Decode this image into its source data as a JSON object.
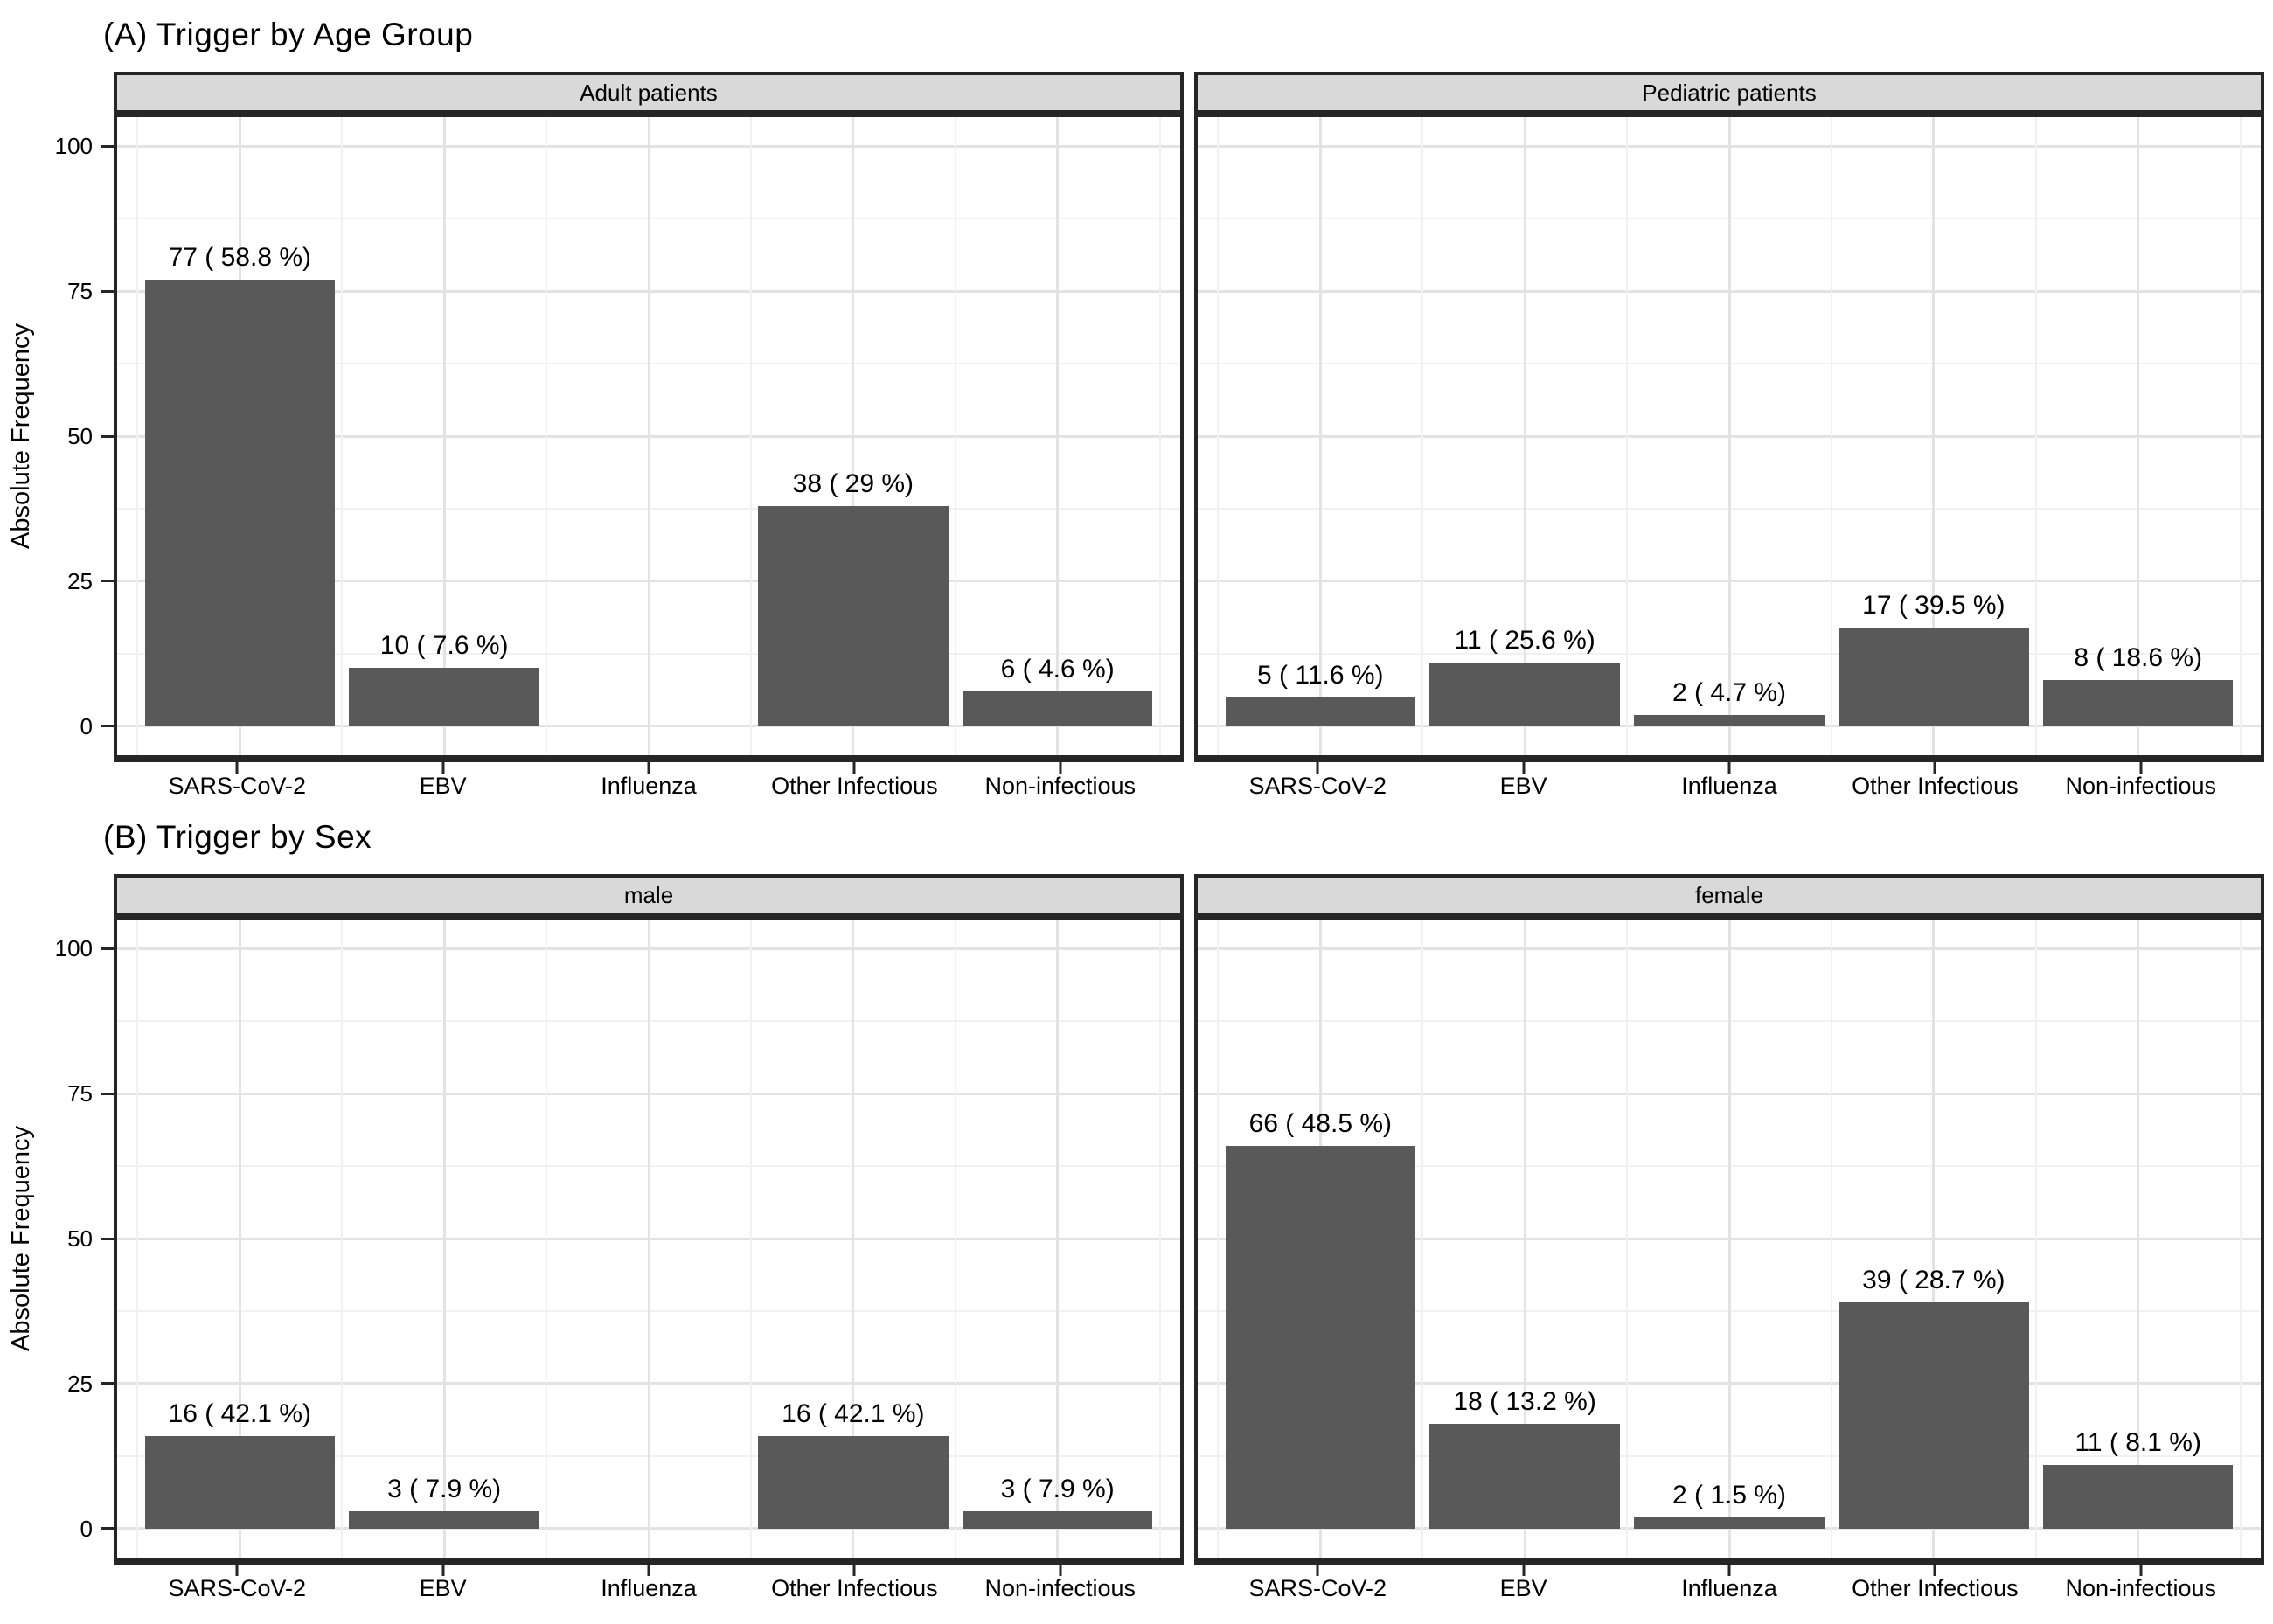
{
  "colors": {
    "bar_fill": "#595959",
    "strip_background": "#d9d9d9",
    "panel_border": "#262626",
    "grid_major": "#e3e3e3",
    "grid_minor": "#f1f1f1",
    "text": "#000000",
    "page_background": "#ffffff"
  },
  "y_axis": {
    "label": "Absolute Frequency",
    "tick_values": [
      0,
      25,
      50,
      75,
      100
    ],
    "minor_values": [
      12.5,
      37.5,
      62.5,
      87.5
    ],
    "domain_min": -5,
    "domain_max": 105
  },
  "categories": [
    "SARS-CoV-2",
    "EBV",
    "Influenza",
    "Other Infectious",
    "Non-infectious"
  ],
  "chart_data": [
    {
      "type": "bar",
      "title": "(A) Trigger by Age Group",
      "xlabel": "",
      "ylabel": "Absolute Frequency",
      "ylim": [
        0,
        105
      ],
      "grid": "on",
      "categories": [
        "SARS-CoV-2",
        "EBV",
        "Influenza",
        "Other Infectious",
        "Non-infectious"
      ],
      "facets": [
        {
          "label": "Adult patients",
          "values": [
            77,
            10,
            0,
            38,
            6
          ],
          "bar_labels": [
            "77 ( 58.8 %)",
            "10 ( 7.6 %)",
            "",
            "38 ( 29 %)",
            "6 ( 4.6 %)"
          ]
        },
        {
          "label": "Pediatric patients",
          "values": [
            5,
            11,
            2,
            17,
            8
          ],
          "bar_labels": [
            "5 ( 11.6 %)",
            "11 ( 25.6 %)",
            "2 ( 4.7 %)",
            "17 ( 39.5 %)",
            "8 ( 18.6 %)"
          ]
        }
      ]
    },
    {
      "type": "bar",
      "title": "(B) Trigger by Sex",
      "xlabel": "",
      "ylabel": "Absolute Frequency",
      "ylim": [
        0,
        105
      ],
      "grid": "on",
      "categories": [
        "SARS-CoV-2",
        "EBV",
        "Influenza",
        "Other Infectious",
        "Non-infectious"
      ],
      "facets": [
        {
          "label": "male",
          "values": [
            16,
            3,
            0,
            16,
            3
          ],
          "bar_labels": [
            "16 ( 42.1 %)",
            "3 ( 7.9 %)",
            "",
            "16 ( 42.1 %)",
            "3 ( 7.9 %)"
          ]
        },
        {
          "label": "female",
          "values": [
            66,
            18,
            2,
            39,
            11
          ],
          "bar_labels": [
            "66 ( 48.5 %)",
            "18 ( 13.2 %)",
            "2 ( 1.5 %)",
            "39 ( 28.7 %)",
            "11 ( 8.1 %)"
          ]
        }
      ]
    }
  ]
}
